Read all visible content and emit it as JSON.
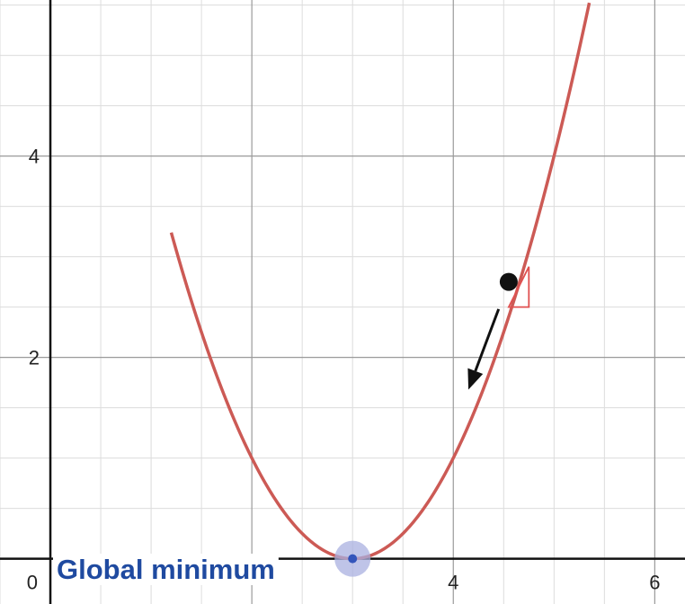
{
  "chart_data": {
    "type": "line",
    "xlim": [
      -0.5,
      6.3
    ],
    "ylim": [
      -0.45,
      5.55
    ],
    "grid": true,
    "minor_grid_step": 0.5,
    "major_grid_step": 2,
    "x_ticks": [
      {
        "value": 0,
        "label": "0"
      },
      {
        "value": 4,
        "label": "4"
      },
      {
        "value": 6,
        "label": "6"
      }
    ],
    "y_ticks": [
      {
        "value": 2,
        "label": "2"
      },
      {
        "value": 4,
        "label": "4"
      }
    ],
    "series": [
      {
        "function": "(x-3)^2",
        "x": [
          1.2,
          1.5,
          2.0,
          2.5,
          3.0,
          3.5,
          4.0,
          4.5,
          5.0,
          5.35
        ],
        "y": [
          3.24,
          2.25,
          1.0,
          0.25,
          0.0,
          0.25,
          1.0,
          2.25,
          4.0,
          5.52
        ],
        "color": "#cc5a55"
      }
    ],
    "current_point": {
      "x": 4.55,
      "y": 2.75,
      "color": "#111111"
    },
    "step_arrow": {
      "from": [
        4.45,
        2.48
      ],
      "to": [
        4.15,
        1.68
      ],
      "color": "#111111"
    },
    "gradient_triangle": {
      "x0": 4.55,
      "x1": 4.75,
      "y0": 2.5,
      "y1": 2.9,
      "color": "#e05050"
    },
    "minimum_point": {
      "x": 3.0,
      "y": 0.0,
      "color": "#3355bb",
      "halo_color": "#aab0e0"
    },
    "annotation": {
      "text": "Global minimum",
      "color": "#1f4aa0"
    }
  }
}
